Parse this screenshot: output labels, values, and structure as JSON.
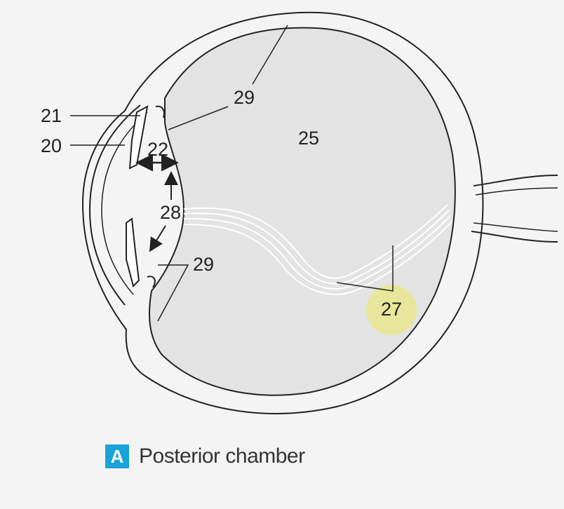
{
  "labels": {
    "l21": "21",
    "l20": "20",
    "l22": "22",
    "l28": "28",
    "l29_top": "29",
    "l29_bottom": "29",
    "l25": "25",
    "l27": "27"
  },
  "caption": {
    "badge": "A",
    "text": "Posterior chamber"
  },
  "colors": {
    "vitreous": "#e3e3e3",
    "outline": "#222222",
    "highlight": "#e8e691",
    "badge": "#1aa3d9"
  }
}
